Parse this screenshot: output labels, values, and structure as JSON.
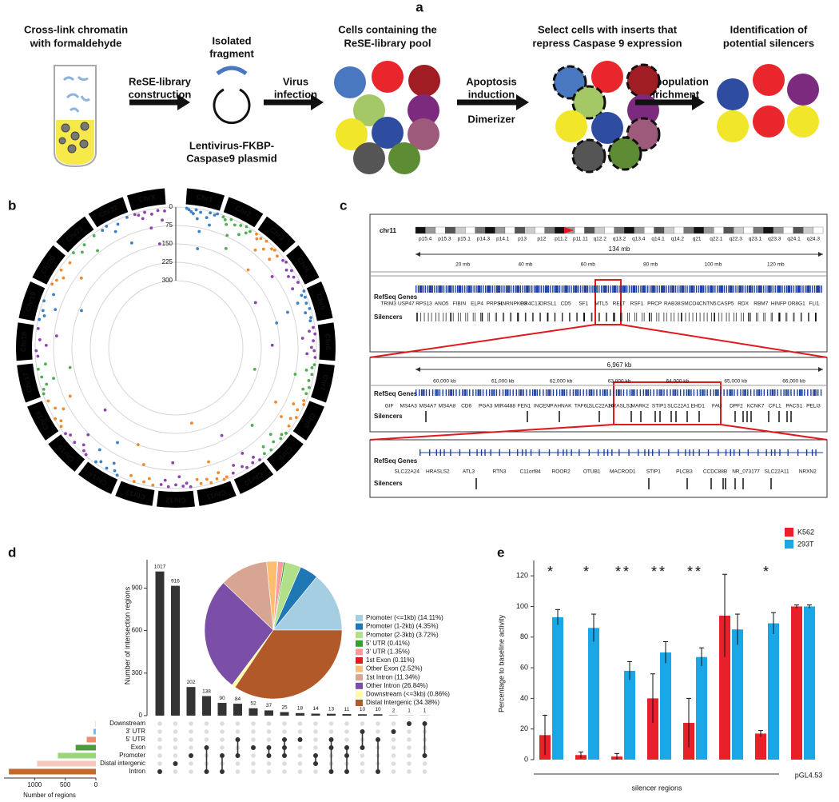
{
  "panel_labels": [
    "a",
    "b",
    "c",
    "d",
    "e"
  ],
  "panel_a": {
    "crosslink": [
      "Cross-link chromatin",
      "with formaldehyde"
    ],
    "library": [
      "ReSE-library",
      "construction"
    ],
    "fragment": [
      "Isolated",
      "fragment"
    ],
    "plasmid": [
      "Lentivirus-FKBP-",
      "Caspase9 plasmid"
    ],
    "virus": [
      "Virus",
      "infection"
    ],
    "pool": [
      "Cells containing the",
      "ReSE-library pool"
    ],
    "apoptosis": [
      "Apoptosis",
      "induction"
    ],
    "dimerizer": "Dimerizer",
    "select": [
      "Select cells with inserts that",
      "repress Caspase 9 expression"
    ],
    "enrichment": [
      "Cell population",
      "enrichment"
    ],
    "identification": [
      "Identification of",
      "potential silencers"
    ]
  },
  "panel_c": {
    "chromosome": "chr11",
    "bands": [
      "p15.4",
      "p15.3",
      "p15.1",
      "p14.3",
      "p14.1",
      "p13",
      "p12",
      "p11.2",
      "p11.11",
      "q12.2",
      "q13.2",
      "q13.4",
      "q14.1",
      "q14.2",
      "q21",
      "q22.1",
      "q22.3",
      "q23.1",
      "q23.3",
      "q24.1",
      "q24.3"
    ],
    "span1": "134 mb",
    "ticks1": [
      "20 mb",
      "40 mb",
      "60 mb",
      "80 mb",
      "100 mb",
      "120 mb"
    ],
    "track_genes": "RefSeq Genes",
    "track_silencers": "Silencers",
    "genes1": [
      "TRIM3",
      "USP47",
      "RPS13",
      "ANO5",
      "FIBIN",
      "ELP4",
      "PRPSL",
      "HNRNPKP3",
      "OR4C13",
      "ORSL1",
      "CD5",
      "SF1",
      "MTL5",
      "RELT",
      "RSF1",
      "PRCP",
      "RAB38",
      "SMCO4",
      "CNTN5",
      "CASP5",
      "RDX",
      "RBM7",
      "HINFP",
      "OR8G1",
      "FLI1"
    ],
    "span2": "6,967 kb",
    "ticks2": [
      "60,000 kb",
      "61,000 kb",
      "62,000 kb",
      "63,000 kb",
      "64,000 kb",
      "65,000 kb",
      "66,000 kb"
    ],
    "genes2": [
      "GIF",
      "MS4A3",
      "MS4A7",
      "MS4A8",
      "CD6",
      "PGA3",
      "MIR4488",
      "FEN1",
      "INCENP",
      "AHNAK",
      "TAF6L",
      "SLC22A24",
      "HRASLS2",
      "MARK2",
      "STIP1",
      "SLC22A1",
      "EHD1",
      "FAU",
      "DPF2",
      "KCNK7",
      "CFL1",
      "PACS1",
      "PELI3"
    ],
    "genes3": [
      "SLC22A24",
      "HRASLS2",
      "ATL3",
      "RTN3",
      "C11orf84",
      "ROOR2",
      "OTUB1",
      "MACROD1",
      "STIP1",
      "PLCB3",
      "CCDC88B",
      "NR_073177",
      "SLC22A11",
      "NRXN2"
    ]
  },
  "chart_data": [
    {
      "type": "radial_scatter",
      "ylim": [
        0,
        300
      ],
      "yticks": [
        0,
        75,
        150,
        225,
        300
      ],
      "series": [
        {
          "name": "Chr1",
          "color": "#3b7fc4",
          "values": [
            3,
            8,
            15,
            22,
            5,
            40,
            12,
            90,
            160,
            28,
            6,
            55,
            10,
            2
          ]
        },
        {
          "name": "Chr2",
          "color": "#4caf50",
          "values": [
            6,
            14,
            30,
            4,
            70,
            18,
            120,
            9,
            45,
            2,
            25,
            11
          ]
        },
        {
          "name": "Chr3",
          "color": "#f0892a",
          "values": [
            5,
            20,
            9,
            60,
            3,
            35,
            140,
            12,
            7,
            48,
            16
          ]
        },
        {
          "name": "Chr4",
          "color": "#8e44ad",
          "values": [
            10,
            4,
            85,
            22,
            6,
            30,
            13,
            200,
            8,
            40
          ]
        },
        {
          "name": "Chr5",
          "color": "#3b7fc4",
          "values": [
            2,
            18,
            7,
            44,
            11,
            95,
            5,
            26,
            150,
            9,
            14
          ]
        },
        {
          "name": "Chr6",
          "color": "#8e44ad",
          "values": [
            7,
            25,
            3,
            55,
            12,
            180,
            20,
            9,
            38,
            4
          ]
        },
        {
          "name": "Chr7",
          "color": "#4caf50",
          "values": [
            4,
            12,
            33,
            8,
            75,
            15,
            240,
            6,
            28,
            10
          ]
        },
        {
          "name": "Chr8",
          "color": "#f0892a",
          "values": [
            9,
            3,
            42,
            17,
            110,
            6,
            24,
            60,
            13
          ]
        },
        {
          "name": "Chr9",
          "color": "#4caf50",
          "values": [
            5,
            16,
            8,
            50,
            21,
            130,
            4,
            35,
            11
          ]
        },
        {
          "name": "Chr10",
          "color": "#8e44ad",
          "values": [
            3,
            27,
            10,
            65,
            6,
            19,
            170,
            40,
            12
          ]
        },
        {
          "name": "Chr11",
          "color": "#f0892a",
          "values": [
            8,
            2,
            36,
            14,
            90,
            5,
            23,
            260,
            11,
            30
          ]
        },
        {
          "name": "Chr12",
          "color": "#8e44ad",
          "values": [
            4,
            20,
            9,
            48,
            15,
            105,
            7,
            32,
            13
          ]
        },
        {
          "name": "Chr13",
          "color": "#f0892a",
          "values": [
            6,
            30,
            12,
            80,
            3,
            22,
            150
          ]
        },
        {
          "name": "Chr14",
          "color": "#3b7fc4",
          "values": [
            2,
            14,
            40,
            8,
            120,
            18,
            6,
            55
          ]
        },
        {
          "name": "Chr15",
          "color": "#8e44ad",
          "values": [
            5,
            11,
            28,
            70,
            9,
            190,
            16,
            4
          ]
        },
        {
          "name": "Chr16",
          "color": "#f0892a",
          "values": [
            7,
            19,
            3,
            52,
            24,
            100,
            10
          ]
        },
        {
          "name": "Chr17",
          "color": "#4caf50",
          "values": [
            3,
            9,
            26,
            60,
            14,
            135,
            6,
            38
          ]
        },
        {
          "name": "Chr18",
          "color": "#8e44ad",
          "values": [
            10,
            4,
            45,
            18,
            85,
            7
          ]
        },
        {
          "name": "Chr19",
          "color": "#3b7fc4",
          "values": [
            5,
            22,
            11,
            58,
            3,
            160,
            30
          ]
        },
        {
          "name": "Chr20",
          "color": "#f0892a",
          "values": [
            6,
            15,
            34,
            9,
            95,
            20
          ]
        },
        {
          "name": "Chr21",
          "color": "#4caf50",
          "values": [
            4,
            28,
            12,
            65,
            8
          ]
        },
        {
          "name": "Chr22",
          "color": "#3b7fc4",
          "values": [
            9,
            3,
            40,
            17,
            110,
            6
          ]
        },
        {
          "name": "ChrX",
          "color": "#8e44ad",
          "values": [
            5,
            12,
            30,
            7,
            75,
            20,
            145,
            9,
            50,
            14
          ]
        }
      ]
    },
    {
      "type": "upset",
      "ylabel": "Number of intersection regions",
      "values": [
        1017,
        916,
        202,
        138,
        90,
        84,
        52,
        37,
        25,
        18,
        14,
        13,
        11,
        10,
        10,
        2,
        1,
        1
      ],
      "combinations": [
        [
          6
        ],
        [
          5
        ],
        [
          4
        ],
        [
          3,
          6
        ],
        [
          4,
          6
        ],
        [
          2,
          4
        ],
        [
          3
        ],
        [
          3,
          4
        ],
        [
          2,
          3,
          4
        ],
        [
          2
        ],
        [
          4,
          5
        ],
        [
          2,
          3,
          6
        ],
        [
          3,
          4,
          6
        ],
        [
          1,
          3
        ],
        [
          2,
          6
        ],
        [
          1
        ],
        [
          0
        ],
        [
          0,
          4
        ]
      ],
      "color": "#333333",
      "ylim": [
        0,
        1100
      ],
      "yticks": [
        0,
        300,
        600,
        900
      ]
    },
    {
      "type": "barh",
      "xlabel": "Number of regions",
      "categories": [
        "Downstream",
        "3' UTR",
        "5' UTR",
        "Exon",
        "Promoter",
        "Distal intergenic",
        "Intron"
      ],
      "values": [
        12,
        40,
        150,
        330,
        620,
        960,
        1420
      ],
      "colors": [
        "#f4e79a",
        "#7fb8e2",
        "#f08a70",
        "#4e9a3c",
        "#9ad57a",
        "#f5c9bb",
        "#c8692c"
      ],
      "xlim": [
        1500,
        0
      ],
      "xticks": [
        1000,
        500,
        0
      ]
    },
    {
      "type": "pie",
      "categories": [
        "Promoter (<=1kb) (14.11%)",
        "Promoter (1-2kb) (4.35%)",
        "Promoter (2-3kb) (3.72%)",
        "5' UTR (0.41%)",
        "3' UTR (1.35%)",
        "1st Exon (0.11%)",
        "Other Exon (2.52%)",
        "1st Intron (11.34%)",
        "Other Intron (26.84%)",
        "Downstream (<=3kb) (0.86%)",
        "Distal Intergenic (34.38%)"
      ],
      "values": [
        14.11,
        4.35,
        3.72,
        0.41,
        1.35,
        0.11,
        2.52,
        11.34,
        26.84,
        0.86,
        34.38
      ],
      "colors": [
        "#a6cee3",
        "#1f78b4",
        "#b2df8a",
        "#33a02c",
        "#fb9a99",
        "#e31a1c",
        "#fdbf6f",
        "#d8a593",
        "#7b4fa8",
        "#ffff99",
        "#b15928"
      ]
    },
    {
      "type": "bar",
      "ylabel": "Percentage to baseline activity",
      "categories": [
        null,
        null,
        null,
        null,
        null,
        null,
        null,
        null
      ],
      "series": [
        {
          "name": "K562",
          "color": "#e8202a",
          "values": [
            16,
            3,
            2,
            40,
            24,
            94,
            17,
            100
          ],
          "errors": [
            13,
            2,
            2,
            16,
            16,
            27,
            2,
            1
          ]
        },
        {
          "name": "293T",
          "color": "#1aa7e8",
          "values": [
            93,
            86,
            58,
            70,
            67,
            85,
            89,
            100
          ],
          "errors": [
            5,
            9,
            6,
            7,
            6,
            10,
            7,
            1
          ]
        }
      ],
      "annotations": [
        "*",
        "*",
        "**",
        "**",
        "**",
        null,
        "*",
        null
      ],
      "group_label": "silencer regions",
      "control_label": "pGL4.53",
      "ylim": [
        0,
        130
      ],
      "yticks": [
        0,
        20,
        40,
        60,
        80,
        100,
        120
      ],
      "legend": "upper right"
    }
  ]
}
